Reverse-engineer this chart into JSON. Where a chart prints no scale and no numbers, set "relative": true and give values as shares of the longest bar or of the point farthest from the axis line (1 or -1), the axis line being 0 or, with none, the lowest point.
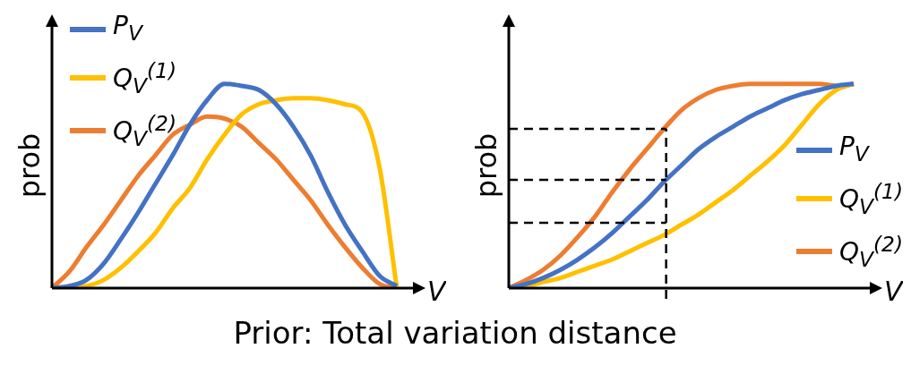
{
  "chart_data": [
    {
      "type": "line",
      "relative": true,
      "ylabel": "prob",
      "xlabel": "V",
      "legend": "top left",
      "categories": [
        null,
        null,
        null,
        null,
        null,
        null,
        null,
        null,
        null,
        null,
        null,
        null,
        null,
        null,
        null,
        null,
        null,
        null,
        null,
        null,
        null
      ],
      "series": [
        {
          "name": "P$_{V}$",
          "color": "#4472c4",
          "values": [
            0,
            0.01,
            0.04,
            0.12,
            0.24,
            0.37,
            0.51,
            0.65,
            0.8,
            0.92,
            1,
            0.99,
            0.97,
            0.9,
            0.79,
            0.65,
            0.47,
            0.31,
            0.18,
            0.06,
            0.01
          ]
        },
        {
          "name": "Q$_{V}$$^{(1)}$",
          "color": "#ffc000",
          "values": [
            0,
            0,
            0.01,
            0.04,
            0.1,
            0.18,
            0.27,
            0.39,
            0.49,
            0.63,
            0.75,
            0.85,
            0.9,
            0.92,
            0.93,
            0.93,
            0.92,
            0.9,
            0.86,
            0.59,
            0
          ]
        },
        {
          "name": "Q$_{V}$$^{(2)}$",
          "color": "#ed7d31",
          "values": [
            0,
            0.08,
            0.2,
            0.31,
            0.43,
            0.55,
            0.65,
            0.75,
            0.8,
            0.84,
            0.83,
            0.79,
            0.71,
            0.63,
            0.53,
            0.43,
            0.31,
            0.2,
            0.1,
            0.02,
            0
          ]
        }
      ],
      "annotations": [
        "Prior: Total variation distance"
      ]
    },
    {
      "type": "line",
      "relative": true,
      "ylabel": "prob",
      "xlabel": "V",
      "legend": "right",
      "categories": [
        null,
        null,
        null,
        null,
        null,
        null,
        null,
        null,
        null,
        null,
        null,
        null,
        null,
        null,
        null,
        null,
        null,
        null,
        null,
        null,
        null
      ],
      "series": [
        {
          "name": "P$_{V}$",
          "color": "#4472c4",
          "values": [
            0,
            0.02,
            0.05,
            0.09,
            0.14,
            0.2,
            0.27,
            0.35,
            0.43,
            0.52,
            0.6,
            0.68,
            0.74,
            0.79,
            0.84,
            0.88,
            0.92,
            0.95,
            0.97,
            0.99,
            1
          ]
        },
        {
          "name": "Q$_{V}$$^{(1)}$",
          "color": "#ffc000",
          "values": [
            0,
            0.01,
            0.03,
            0.05,
            0.08,
            0.11,
            0.14,
            0.18,
            0.22,
            0.26,
            0.31,
            0.36,
            0.42,
            0.48,
            0.55,
            0.62,
            0.7,
            0.8,
            0.9,
            0.97,
            1
          ]
        },
        {
          "name": "Q$_{V}$$^{(2)}$",
          "color": "#ed7d31",
          "values": [
            0,
            0.04,
            0.09,
            0.16,
            0.25,
            0.35,
            0.47,
            0.58,
            0.68,
            0.78,
            0.87,
            0.93,
            0.97,
            0.99,
            1,
            1,
            1,
            1,
            1,
            0.99,
            1
          ]
        }
      ],
      "ref_lines": [
        {
          "axis": "y",
          "value": 0.78,
          "line_style": "dashed"
        },
        {
          "axis": "y",
          "value": 0.53,
          "line_style": "dashed"
        },
        {
          "axis": "y",
          "value": 0.32,
          "line_style": "dashed"
        }
      ]
    }
  ]
}
